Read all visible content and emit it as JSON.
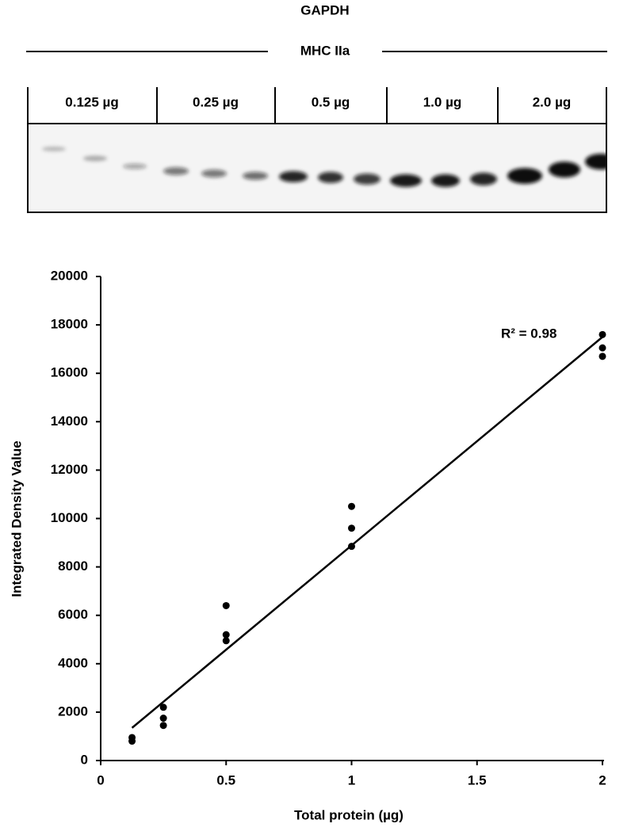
{
  "blot": {
    "title": "GAPDH",
    "subtitle": "MHC IIa",
    "lanes": [
      "0.125 µg",
      "0.25 µg",
      "0.5 µg",
      "1.0 µg",
      "2.0 µg"
    ]
  },
  "chart_data": {
    "type": "scatter",
    "x": [
      0.125,
      0.125,
      0.25,
      0.25,
      0.25,
      0.5,
      0.5,
      0.5,
      1,
      1,
      1,
      2,
      2,
      2
    ],
    "values": [
      950,
      800,
      2200,
      1750,
      1450,
      6400,
      5200,
      4950,
      10500,
      9600,
      8850,
      17600,
      17050,
      16700
    ],
    "color": "#000000",
    "trendline": {
      "x": [
        0.125,
        2
      ],
      "y": [
        1350,
        17500
      ]
    },
    "annotation": "R² = 0.98",
    "xlabel": "Total protein (µg)",
    "ylabel": "Integrated Density Value",
    "xlim": [
      0,
      2
    ],
    "ylim": [
      0,
      20000
    ],
    "xticks": [
      0,
      0.5,
      1,
      1.5,
      2
    ],
    "yticks": [
      0,
      2000,
      4000,
      6000,
      8000,
      10000,
      12000,
      14000,
      16000,
      18000,
      20000
    ]
  }
}
